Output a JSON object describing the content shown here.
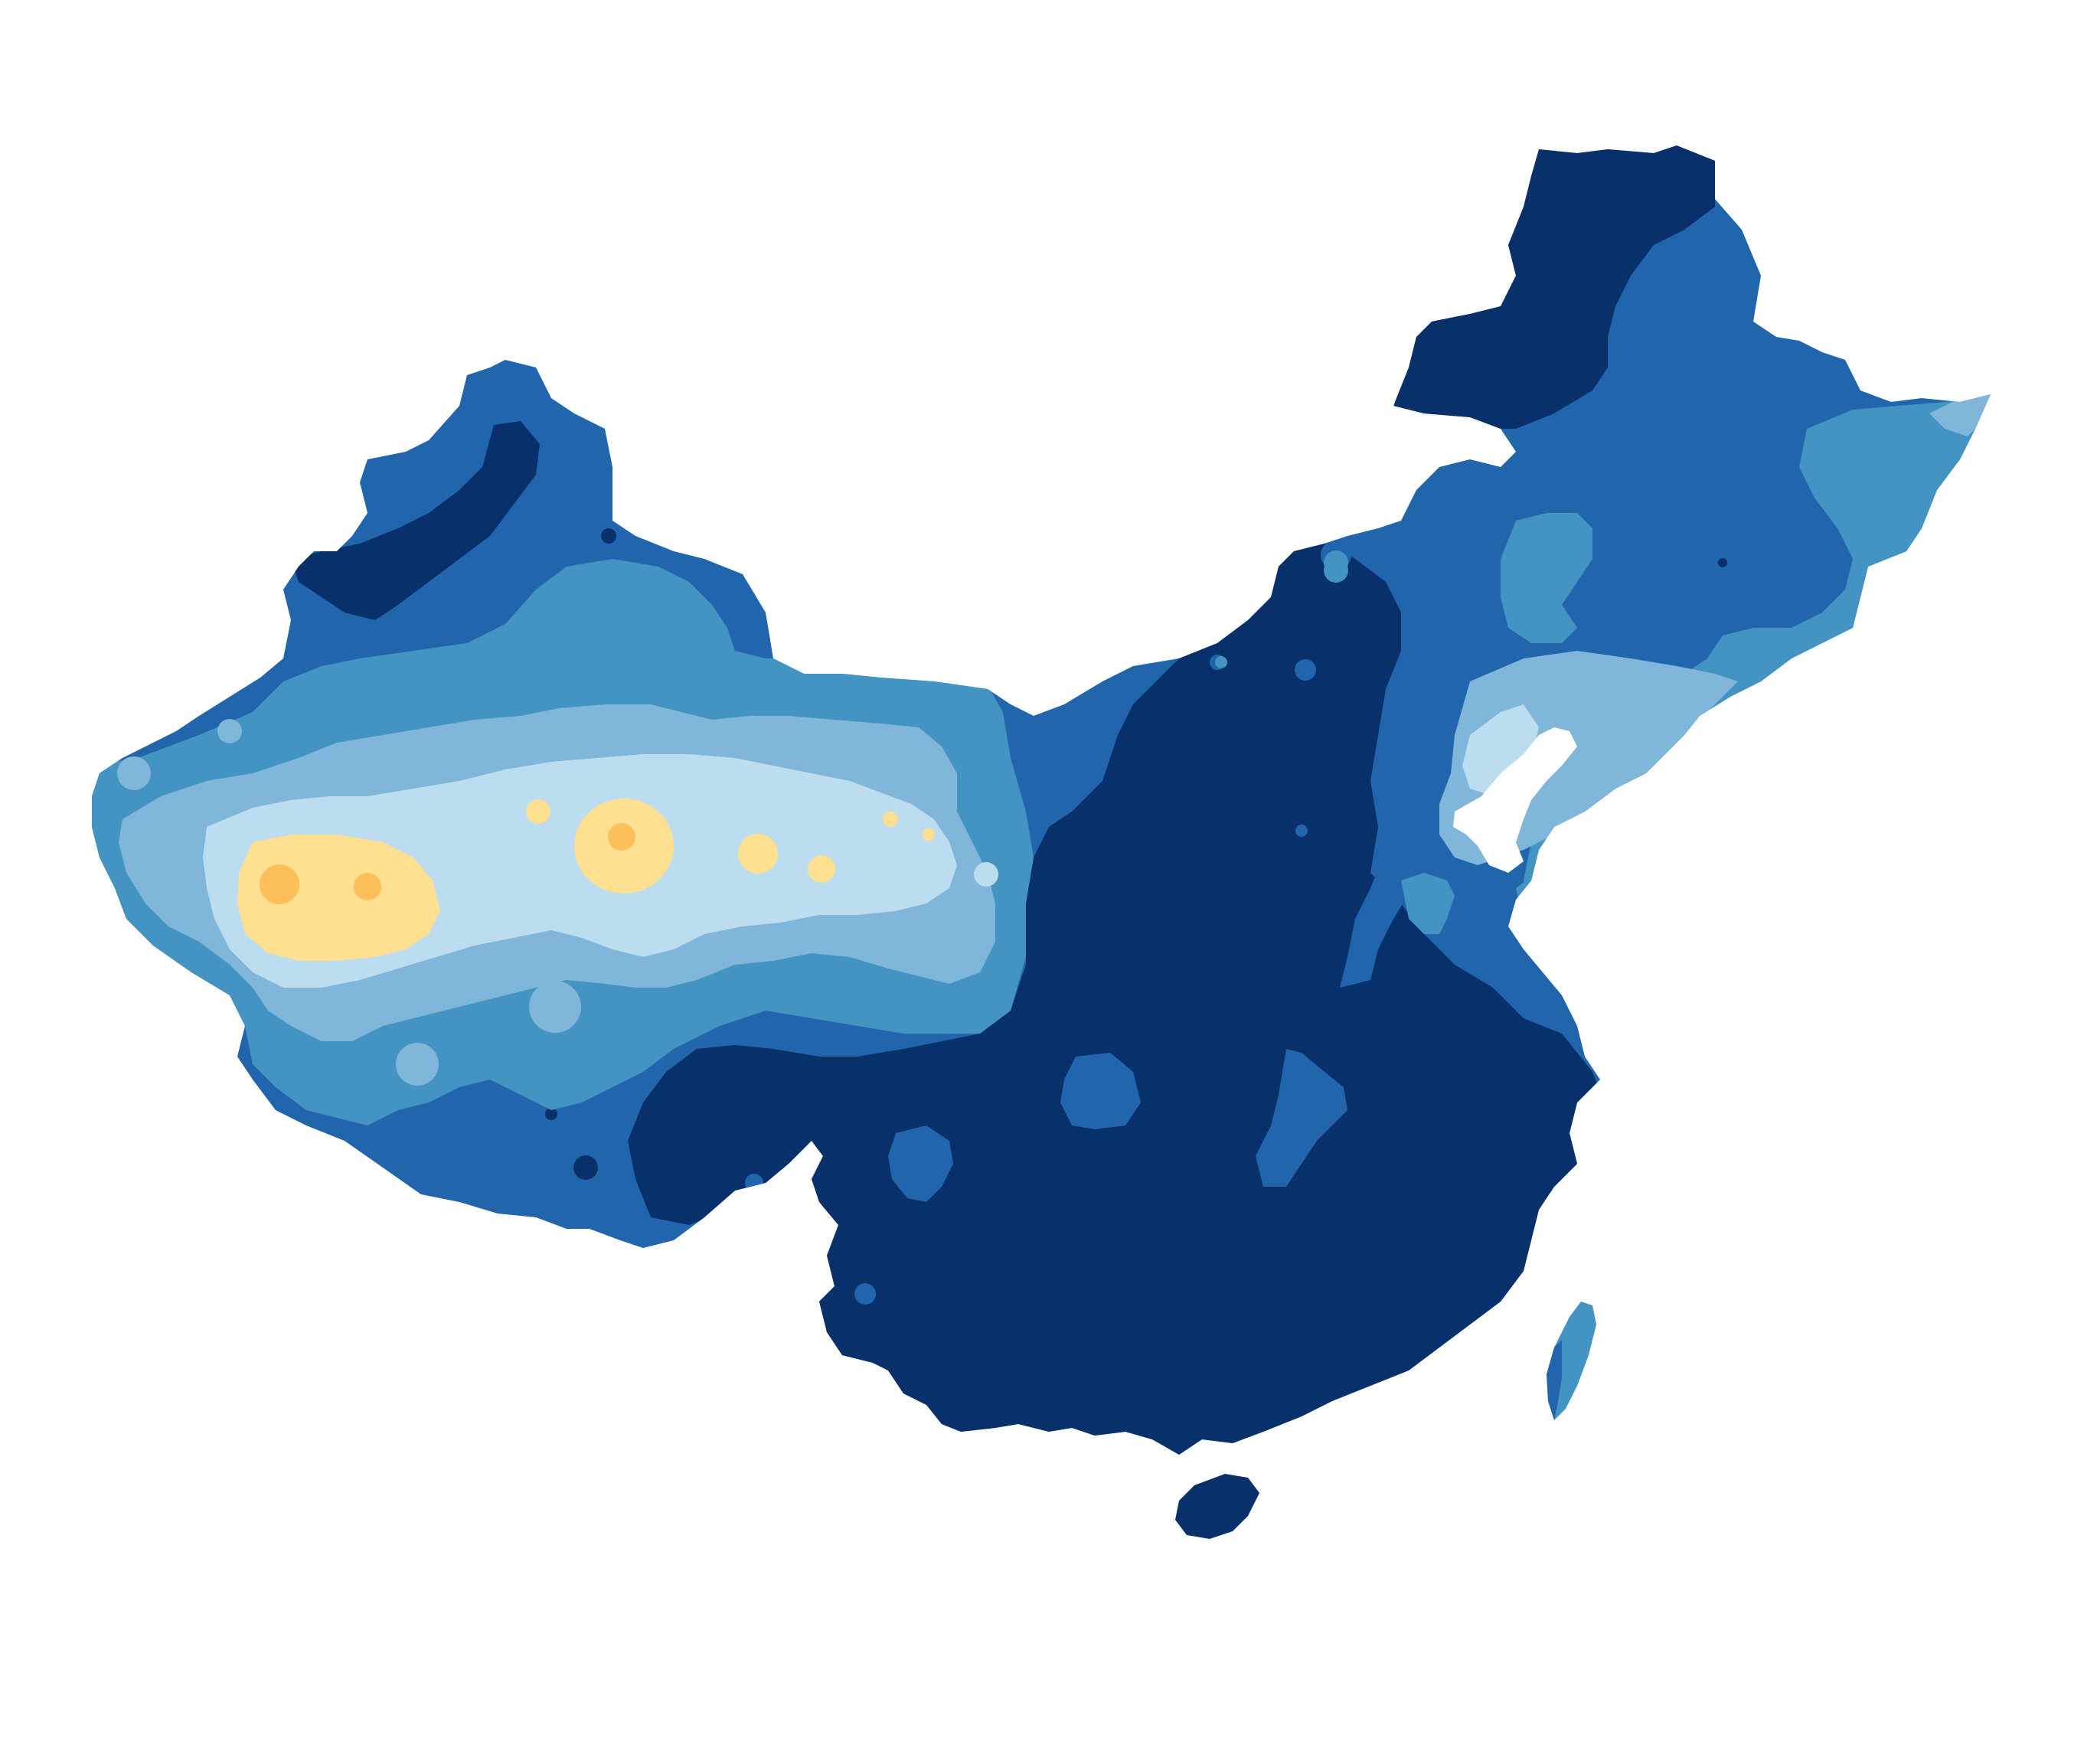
{
  "map": {
    "region": "China",
    "type": "filled-contour choropleth",
    "palette": {
      "level_0_darkest": "#08306b",
      "level_1": "#2166ac",
      "level_2": "#4393c3",
      "level_3": "#7fb6d9",
      "level_4": "#bcdcef",
      "level_5_pale_yellow": "#fee090",
      "level_6_orange": "#fdbf5a",
      "background": "#ffffff"
    },
    "legend": null,
    "title": null
  }
}
